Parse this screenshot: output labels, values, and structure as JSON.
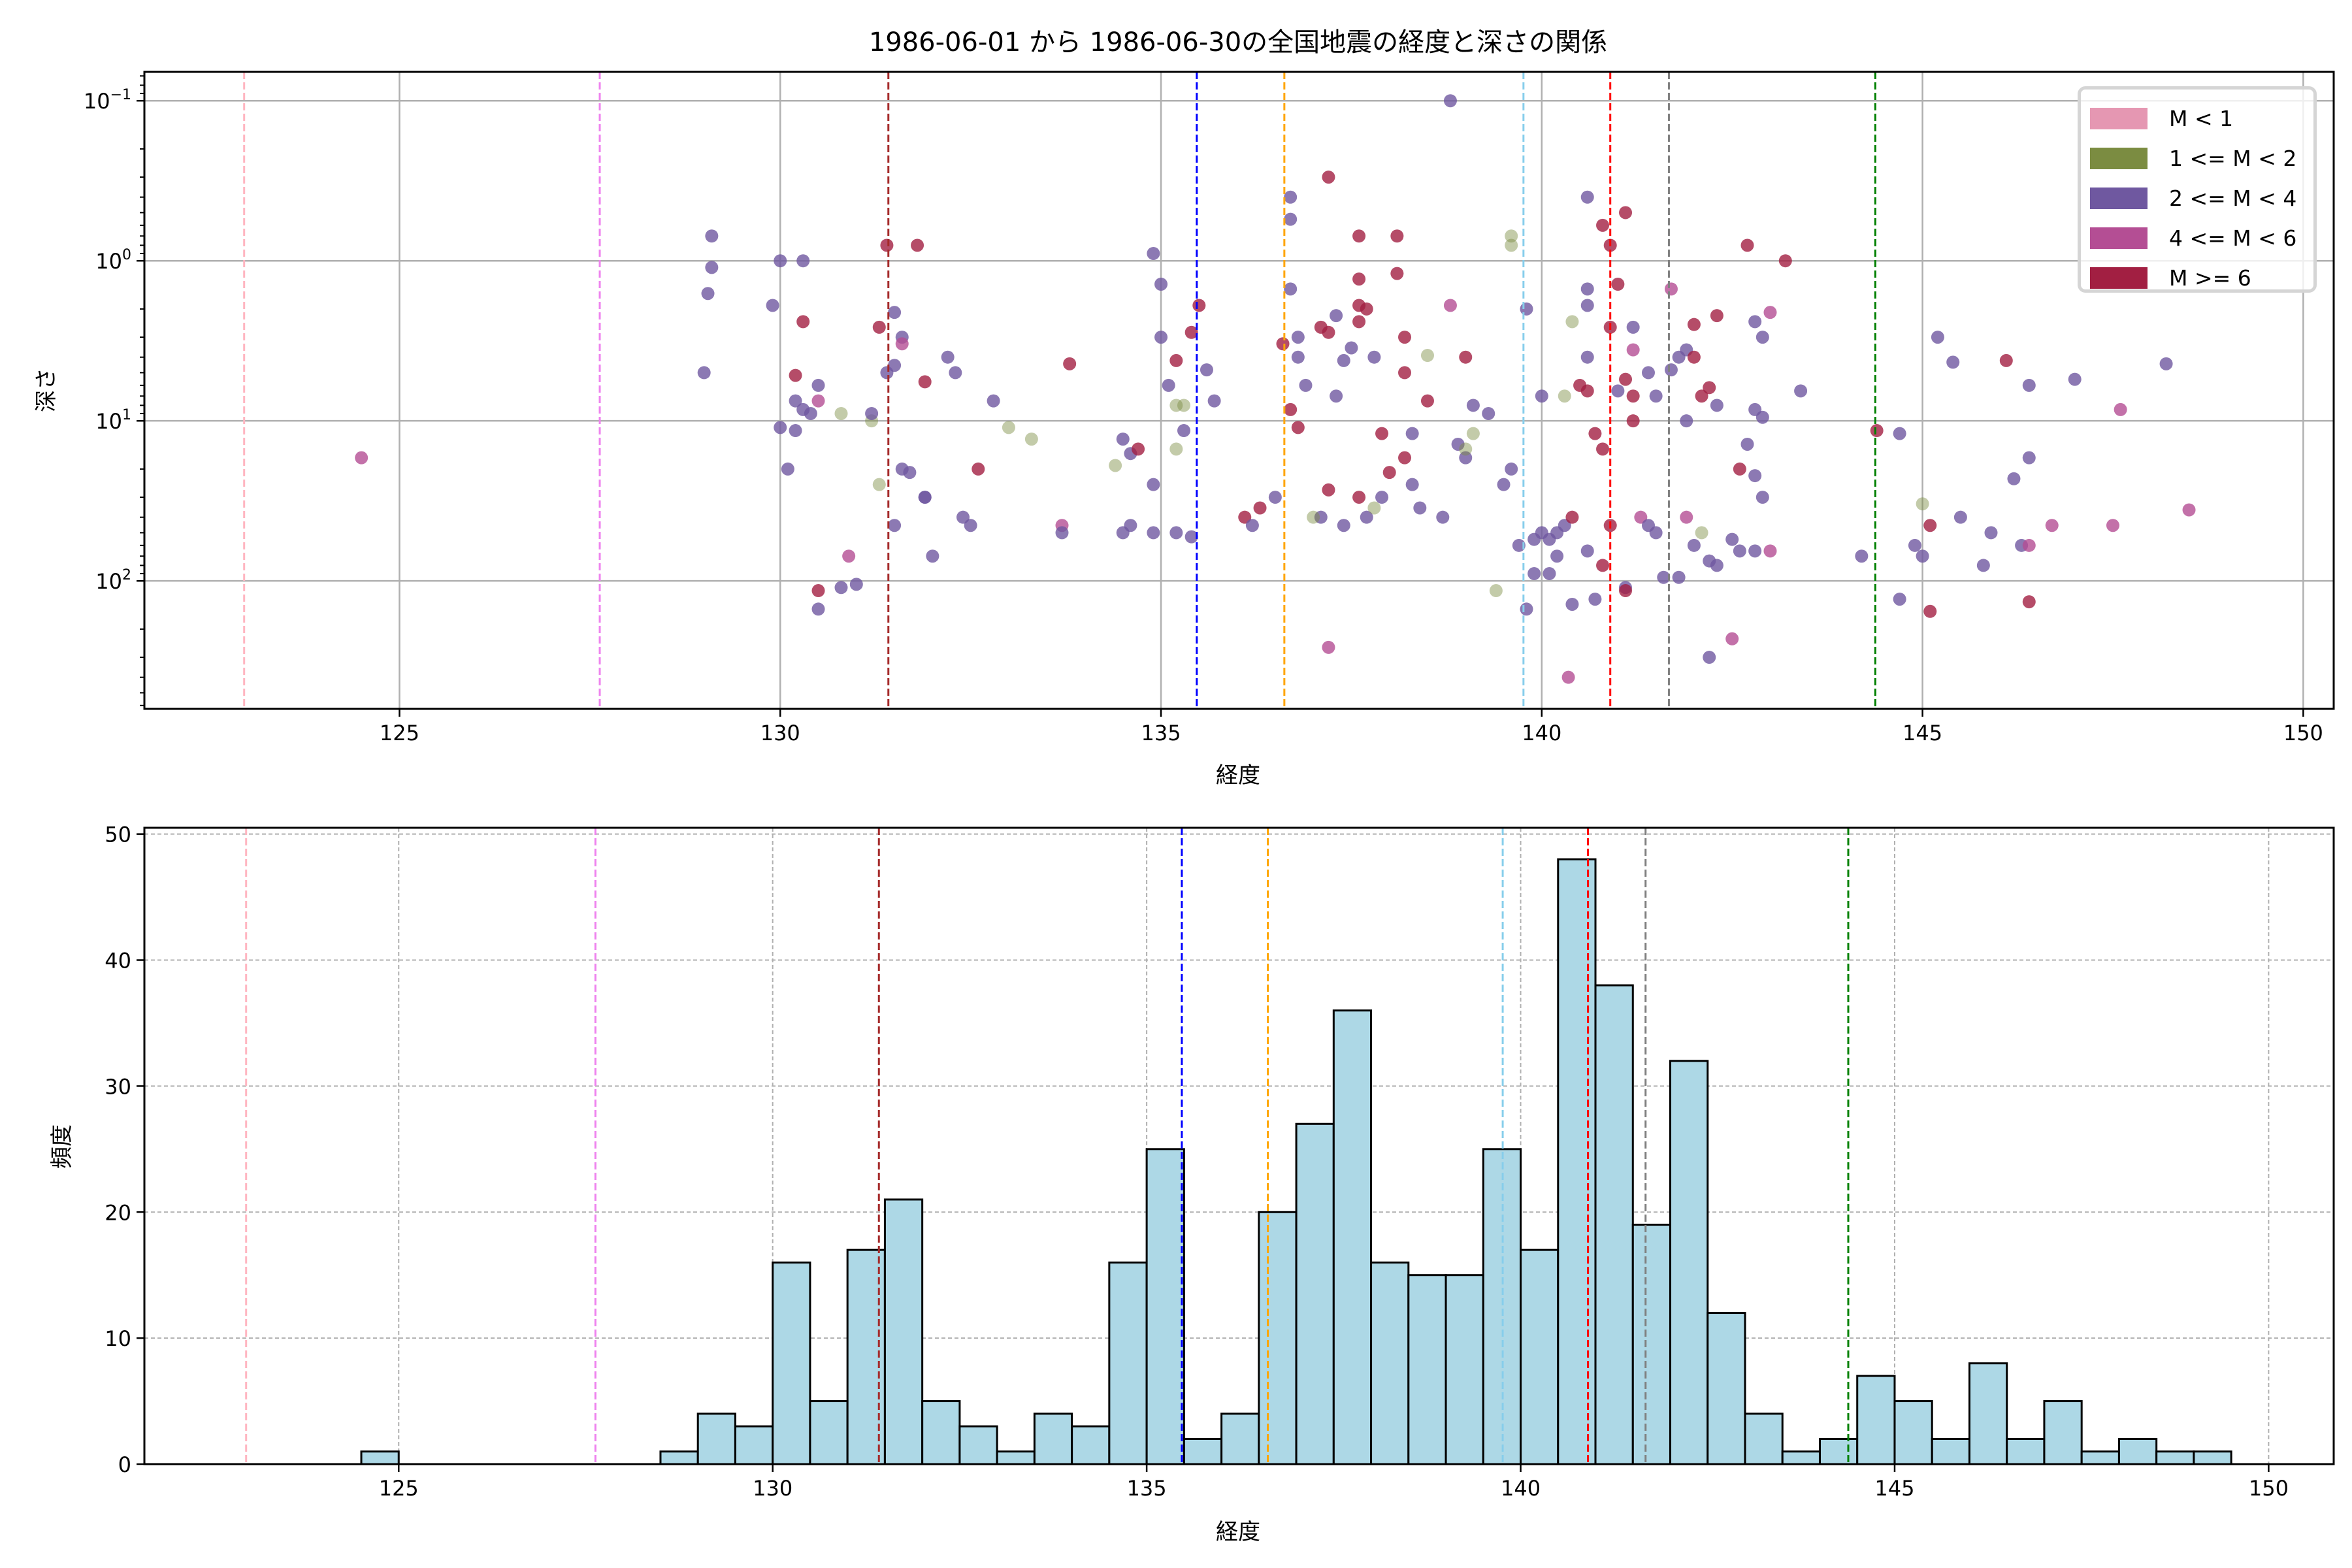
{
  "title": "1986-06-01 から 1986-06-30の全国地震の経度と深さの関係",
  "chart_data": [
    {
      "type": "scatter",
      "xlabel": "経度",
      "ylabel": "深さ",
      "xlim": [
        121.65,
        150.4
      ],
      "ylim": [
        0.066,
        630
      ],
      "yscale": "log",
      "yinverted": true,
      "xticks": [
        "125",
        "130",
        "135",
        "140",
        "145",
        "150"
      ],
      "yticks": [
        {
          "v": 0.1,
          "base": "10",
          "exp": "−1"
        },
        {
          "v": 1,
          "base": "10",
          "exp": "0"
        },
        {
          "v": 10,
          "base": "10",
          "exp": "1"
        },
        {
          "v": 100,
          "base": "10",
          "exp": "2"
        }
      ],
      "grid": true,
      "legend_placement": "top-right",
      "classes": [
        {
          "label": "M < 1",
          "color": "#e597b2"
        },
        {
          "label": "1 <= M < 2",
          "color": "#7b8c41"
        },
        {
          "label": "2 <= M < 4",
          "color": "#6f58a0"
        },
        {
          "label": "4 <= M < 6",
          "color": "#b44e94"
        },
        {
          "label": "M >= 6",
          "color": "#a21f42"
        }
      ],
      "points_format": [
        "longitude",
        "depth",
        "class_index"
      ],
      "points": [
        [
          124.5,
          17,
          3
        ],
        [
          129,
          5,
          2
        ],
        [
          129.1,
          1.1,
          2
        ],
        [
          129.1,
          0.7,
          2
        ],
        [
          129.05,
          1.6,
          2
        ],
        [
          130,
          1,
          2
        ],
        [
          130.3,
          1,
          2
        ],
        [
          129.9,
          1.9,
          2
        ],
        [
          130.2,
          7.5,
          2
        ],
        [
          130.0,
          11,
          2
        ],
        [
          130.3,
          8.5,
          2
        ],
        [
          130.4,
          9,
          2
        ],
        [
          130.1,
          20,
          2
        ],
        [
          130.5,
          6,
          2
        ],
        [
          130.2,
          11.5,
          2
        ],
        [
          130.3,
          2.4,
          4
        ],
        [
          130.2,
          5.2,
          4
        ],
        [
          130.5,
          115,
          4
        ],
        [
          130.5,
          150,
          2
        ],
        [
          130.8,
          110,
          2
        ],
        [
          131,
          105,
          2
        ],
        [
          130.9,
          70,
          3
        ],
        [
          130.5,
          7.5,
          3
        ],
        [
          130.8,
          9,
          1
        ],
        [
          131.2,
          10,
          1
        ],
        [
          131.2,
          9,
          2
        ],
        [
          131.3,
          25,
          1
        ],
        [
          131.4,
          0.8,
          4
        ],
        [
          131.5,
          2.1,
          2
        ],
        [
          131.6,
          3,
          2
        ],
        [
          131.5,
          4.5,
          2
        ],
        [
          131.3,
          2.6,
          4
        ],
        [
          131.4,
          5,
          2
        ],
        [
          131.8,
          0.8,
          4
        ],
        [
          131.9,
          5.7,
          4
        ],
        [
          131.6,
          20,
          2
        ],
        [
          131.9,
          30,
          2
        ],
        [
          132.2,
          4,
          2
        ],
        [
          132.3,
          5,
          2
        ],
        [
          132.5,
          45,
          2
        ],
        [
          132.4,
          40,
          2
        ],
        [
          132.0,
          70,
          2
        ],
        [
          131.5,
          45,
          2
        ],
        [
          131.7,
          21,
          2
        ],
        [
          132.8,
          7.5,
          2
        ],
        [
          133.0,
          11,
          1
        ],
        [
          133.3,
          13,
          1
        ],
        [
          132.6,
          20,
          4
        ],
        [
          131.6,
          3.3,
          3
        ],
        [
          131.9,
          30,
          2
        ],
        [
          133.8,
          4.4,
          4
        ],
        [
          133.7,
          45,
          3
        ],
        [
          133.7,
          50,
          2
        ],
        [
          134.5,
          50,
          2
        ],
        [
          134.6,
          45,
          2
        ],
        [
          134.5,
          13,
          2
        ],
        [
          134.6,
          16,
          2
        ],
        [
          134.4,
          19,
          1
        ],
        [
          134.9,
          0.9,
          2
        ],
        [
          135.0,
          1.4,
          2
        ],
        [
          135.0,
          3,
          2
        ],
        [
          135.1,
          6,
          2
        ],
        [
          135.2,
          8,
          1
        ],
        [
          135.3,
          11.5,
          2
        ],
        [
          135.4,
          53,
          2
        ],
        [
          135.2,
          50,
          2
        ],
        [
          134.9,
          50,
          2
        ],
        [
          135.4,
          2.8,
          4
        ],
        [
          135.5,
          1.9,
          4
        ],
        [
          135.2,
          4.2,
          4
        ],
        [
          134.7,
          15,
          4
        ],
        [
          135.3,
          8,
          1
        ],
        [
          135.2,
          15,
          1
        ],
        [
          135.7,
          7.5,
          2
        ],
        [
          135.6,
          4.8,
          2
        ],
        [
          134.9,
          25,
          2
        ],
        [
          136.1,
          40,
          4
        ],
        [
          136.3,
          35,
          4
        ],
        [
          136.2,
          45,
          2
        ],
        [
          136.5,
          30,
          2
        ],
        [
          136.7,
          0.4,
          2
        ],
        [
          136.7,
          0.55,
          2
        ],
        [
          136.7,
          1.5,
          2
        ],
        [
          136.8,
          3,
          2
        ],
        [
          136.8,
          4,
          2
        ],
        [
          136.6,
          3.3,
          4
        ],
        [
          136.9,
          6,
          2
        ],
        [
          136.7,
          8.5,
          4
        ],
        [
          136.8,
          11,
          4
        ],
        [
          137.2,
          0.3,
          4
        ],
        [
          137.3,
          2.2,
          2
        ],
        [
          137.2,
          2.8,
          4
        ],
        [
          137.1,
          2.6,
          4
        ],
        [
          137.3,
          7,
          2
        ],
        [
          137.6,
          0.7,
          4
        ],
        [
          137.6,
          1.3,
          4
        ],
        [
          137.6,
          1.9,
          4
        ],
        [
          137.7,
          2.0,
          4
        ],
        [
          137.6,
          2.4,
          4
        ],
        [
          137.4,
          4.2,
          2
        ],
        [
          137.5,
          3.5,
          2
        ],
        [
          137.8,
          4,
          2
        ],
        [
          137.9,
          12,
          4
        ],
        [
          137.2,
          27,
          4
        ],
        [
          137.1,
          40,
          2
        ],
        [
          137.4,
          45,
          2
        ],
        [
          137.2,
          260,
          3
        ],
        [
          137.6,
          30,
          4
        ],
        [
          137.7,
          40,
          2
        ],
        [
          137.9,
          30,
          2
        ],
        [
          137.8,
          35,
          1
        ],
        [
          137.0,
          40,
          1
        ],
        [
          138.1,
          0.7,
          4
        ],
        [
          138.1,
          1.2,
          4
        ],
        [
          138.2,
          3,
          4
        ],
        [
          138.2,
          5,
          4
        ],
        [
          138.3,
          12,
          2
        ],
        [
          138.5,
          3.9,
          1
        ],
        [
          138.5,
          7.5,
          4
        ],
        [
          138.2,
          17,
          4
        ],
        [
          138.0,
          21,
          4
        ],
        [
          138.3,
          25,
          2
        ],
        [
          138.4,
          35,
          2
        ],
        [
          138.8,
          0.1,
          2
        ],
        [
          138.8,
          1.9,
          3
        ],
        [
          139.0,
          4,
          4
        ],
        [
          139.1,
          8,
          2
        ],
        [
          138.9,
          14,
          2
        ],
        [
          139.0,
          17,
          2
        ],
        [
          138.7,
          40,
          2
        ],
        [
          139.3,
          9,
          2
        ],
        [
          139.6,
          20,
          2
        ],
        [
          139.5,
          25,
          2
        ],
        [
          139.0,
          15,
          1
        ],
        [
          139.1,
          12,
          1
        ],
        [
          139.6,
          0.7,
          1
        ],
        [
          139.6,
          0.8,
          1
        ],
        [
          139.8,
          2,
          2
        ],
        [
          139.7,
          60,
          2
        ],
        [
          139.9,
          55,
          2
        ],
        [
          139.9,
          90,
          2
        ],
        [
          140.0,
          50,
          2
        ],
        [
          140.1,
          55,
          2
        ],
        [
          140.2,
          50,
          2
        ],
        [
          140.3,
          45,
          2
        ],
        [
          140.2,
          70,
          2
        ],
        [
          140.1,
          90,
          2
        ],
        [
          140.35,
          400,
          3
        ],
        [
          139.8,
          150,
          2
        ],
        [
          139.4,
          115,
          1
        ],
        [
          140.0,
          7,
          2
        ],
        [
          140.4,
          40,
          4
        ],
        [
          140.5,
          6,
          4
        ],
        [
          140.6,
          0.4,
          2
        ],
        [
          140.6,
          1.5,
          2
        ],
        [
          140.6,
          1.9,
          2
        ],
        [
          140.4,
          2.4,
          1
        ],
        [
          140.6,
          4,
          2
        ],
        [
          140.6,
          6.5,
          4
        ],
        [
          140.8,
          0.6,
          4
        ],
        [
          140.9,
          0.8,
          4
        ],
        [
          140.9,
          2.6,
          4
        ],
        [
          141.0,
          1.4,
          4
        ],
        [
          141.1,
          0.5,
          4
        ],
        [
          141.2,
          2.6,
          2
        ],
        [
          141.2,
          3.6,
          3
        ],
        [
          141.1,
          5.5,
          4
        ],
        [
          141.0,
          6.5,
          2
        ],
        [
          141.2,
          7,
          4
        ],
        [
          141.2,
          10,
          4
        ],
        [
          140.8,
          15,
          4
        ],
        [
          140.7,
          12,
          4
        ],
        [
          140.8,
          80,
          4
        ],
        [
          140.7,
          130,
          2
        ],
        [
          140.4,
          140,
          2
        ],
        [
          140.6,
          65,
          2
        ],
        [
          141.1,
          110,
          2
        ],
        [
          141.3,
          40,
          3
        ],
        [
          141.1,
          115,
          4
        ],
        [
          140.9,
          45,
          4
        ],
        [
          140.3,
          7,
          1
        ],
        [
          141.5,
          50,
          2
        ],
        [
          141.4,
          45,
          2
        ],
        [
          141.4,
          5,
          2
        ],
        [
          141.5,
          7,
          2
        ],
        [
          141.7,
          4.8,
          2
        ],
        [
          141.8,
          4,
          2
        ],
        [
          141.9,
          3.6,
          2
        ],
        [
          141.7,
          1.5,
          3
        ],
        [
          142.0,
          2.5,
          4
        ],
        [
          141.9,
          10,
          2
        ],
        [
          142.1,
          7,
          4
        ],
        [
          142.0,
          4,
          4
        ],
        [
          142.3,
          2.2,
          4
        ],
        [
          142.2,
          6.2,
          4
        ],
        [
          142.3,
          8,
          2
        ],
        [
          142.0,
          60,
          2
        ],
        [
          142.2,
          75,
          2
        ],
        [
          142.3,
          80,
          2
        ],
        [
          142.5,
          55,
          2
        ],
        [
          142.6,
          65,
          2
        ],
        [
          142.2,
          300,
          2
        ],
        [
          142.5,
          230,
          3
        ],
        [
          142.7,
          0.8,
          4
        ],
        [
          142.8,
          2.4,
          2
        ],
        [
          142.9,
          3,
          2
        ],
        [
          142.8,
          8.5,
          2
        ],
        [
          142.7,
          14,
          2
        ],
        [
          142.8,
          22,
          2
        ],
        [
          142.9,
          9.5,
          2
        ],
        [
          143.0,
          2.1,
          3
        ],
        [
          143.2,
          1,
          4
        ],
        [
          143.0,
          65,
          3
        ],
        [
          143.4,
          6.5,
          2
        ],
        [
          142.9,
          30,
          2
        ],
        [
          142.6,
          20,
          4
        ],
        [
          142.8,
          65,
          2
        ],
        [
          141.9,
          40,
          3
        ],
        [
          142.1,
          50,
          1
        ],
        [
          141.6,
          95,
          2
        ],
        [
          141.8,
          95,
          2
        ],
        [
          144.2,
          70,
          2
        ],
        [
          144.4,
          11.5,
          4
        ],
        [
          144.7,
          12,
          2
        ],
        [
          144.9,
          60,
          2
        ],
        [
          145.0,
          70,
          2
        ],
        [
          145.1,
          45,
          4
        ],
        [
          145.1,
          155,
          4
        ],
        [
          145.0,
          33,
          1
        ],
        [
          144.7,
          130,
          2
        ],
        [
          145.2,
          3,
          2
        ],
        [
          145.4,
          4.3,
          2
        ],
        [
          145.5,
          40,
          2
        ],
        [
          145.8,
          80,
          2
        ],
        [
          145.9,
          50,
          2
        ],
        [
          146.2,
          23,
          2
        ],
        [
          146.1,
          4.2,
          4
        ],
        [
          146.4,
          6,
          2
        ],
        [
          146.4,
          17,
          2
        ],
        [
          146.3,
          60,
          2
        ],
        [
          146.4,
          60,
          3
        ],
        [
          146.4,
          135,
          4
        ],
        [
          146.7,
          45,
          3
        ],
        [
          147.0,
          5.5,
          2
        ],
        [
          147.5,
          45,
          3
        ],
        [
          147.6,
          8.5,
          3
        ],
        [
          148.2,
          4.4,
          2
        ],
        [
          148.5,
          36,
          3
        ]
      ],
      "vlines": [
        {
          "x": 122.96,
          "color": "#ffb6c1"
        },
        {
          "x": 127.63,
          "color": "#ee82ee"
        },
        {
          "x": 131.42,
          "color": "#a52a2a"
        },
        {
          "x": 135.47,
          "color": "#0000ff"
        },
        {
          "x": 136.62,
          "color": "#ffa500"
        },
        {
          "x": 139.76,
          "color": "#87ceeb"
        },
        {
          "x": 140.9,
          "color": "#ff0000"
        },
        {
          "x": 141.67,
          "color": "#808080"
        },
        {
          "x": 144.38,
          "color": "#008000"
        }
      ]
    },
    {
      "type": "bar",
      "subtype": "histogram",
      "xlabel": "経度",
      "ylabel": "頻度",
      "xlim": [
        121.6,
        150.87
      ],
      "ylim": [
        0,
        50.5
      ],
      "xticks": [
        "125",
        "130",
        "135",
        "140",
        "145",
        "150"
      ],
      "yticks": [
        "0",
        "10",
        "20",
        "30",
        "40",
        "50"
      ],
      "grid": "dashed",
      "bin_start": 124.5,
      "bin_width": 0.5,
      "bar_color": "#add8e6",
      "counts": [
        1,
        0,
        0,
        0,
        0,
        0,
        0,
        0,
        1,
        4,
        3,
        16,
        5,
        17,
        21,
        5,
        3,
        1,
        4,
        3,
        16,
        25,
        2,
        4,
        20,
        27,
        36,
        16,
        15,
        15,
        25,
        17,
        48,
        38,
        19,
        32,
        12,
        4,
        1,
        2,
        7,
        5,
        2,
        8,
        2,
        5,
        1,
        2,
        1,
        1
      ],
      "vlines": [
        {
          "x": 122.96,
          "color": "#ffb6c1"
        },
        {
          "x": 127.63,
          "color": "#ee82ee"
        },
        {
          "x": 131.42,
          "color": "#a52a2a"
        },
        {
          "x": 135.47,
          "color": "#0000ff"
        },
        {
          "x": 136.62,
          "color": "#ffa500"
        },
        {
          "x": 139.76,
          "color": "#87ceeb"
        },
        {
          "x": 140.9,
          "color": "#ff0000"
        },
        {
          "x": 141.67,
          "color": "#808080"
        },
        {
          "x": 144.38,
          "color": "#008000"
        }
      ]
    }
  ]
}
